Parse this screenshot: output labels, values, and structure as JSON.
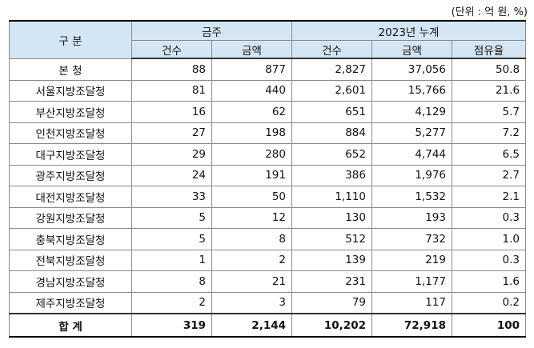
{
  "unit_note": "(단위 : 억 원, %)",
  "header": {
    "category": "구 분",
    "this_week": "금주",
    "cumulative": "2023년 누계",
    "sub": [
      "건수",
      "금액",
      "건수",
      "금액",
      "점유율"
    ]
  },
  "rows": [
    {
      "name": "본 청",
      "c1": "88",
      "a1": "877",
      "c2": "2,827",
      "a2": "37,056",
      "share": "50.8"
    },
    {
      "name": "서울지방조달청",
      "c1": "81",
      "a1": "440",
      "c2": "2,601",
      "a2": "15,766",
      "share": "21.6"
    },
    {
      "name": "부산지방조달청",
      "c1": "16",
      "a1": "62",
      "c2": "651",
      "a2": "4,129",
      "share": "5.7"
    },
    {
      "name": "인천지방조달청",
      "c1": "27",
      "a1": "198",
      "c2": "884",
      "a2": "5,277",
      "share": "7.2"
    },
    {
      "name": "대구지방조달청",
      "c1": "29",
      "a1": "280",
      "c2": "652",
      "a2": "4,744",
      "share": "6.5"
    },
    {
      "name": "광주지방조달청",
      "c1": "24",
      "a1": "191",
      "c2": "386",
      "a2": "1,976",
      "share": "2.7"
    },
    {
      "name": "대전지방조달청",
      "c1": "33",
      "a1": "50",
      "c2": "1,110",
      "a2": "1,532",
      "share": "2.1"
    },
    {
      "name": "강원지방조달청",
      "c1": "5",
      "a1": "12",
      "c2": "130",
      "a2": "193",
      "share": "0.3"
    },
    {
      "name": "충북지방조달청",
      "c1": "5",
      "a1": "8",
      "c2": "512",
      "a2": "732",
      "share": "1.0"
    },
    {
      "name": "전북지방조달청",
      "c1": "1",
      "a1": "2",
      "c2": "139",
      "a2": "219",
      "share": "0.3"
    },
    {
      "name": "경남지방조달청",
      "c1": "8",
      "a1": "21",
      "c2": "231",
      "a2": "1,177",
      "share": "1.6"
    },
    {
      "name": "제주지방조달청",
      "c1": "2",
      "a1": "3",
      "c2": "79",
      "a2": "117",
      "share": "0.2"
    }
  ],
  "total": {
    "name": "합 계",
    "c1": "319",
    "a1": "2,144",
    "c2": "10,202",
    "a2": "72,918",
    "share": "100"
  }
}
